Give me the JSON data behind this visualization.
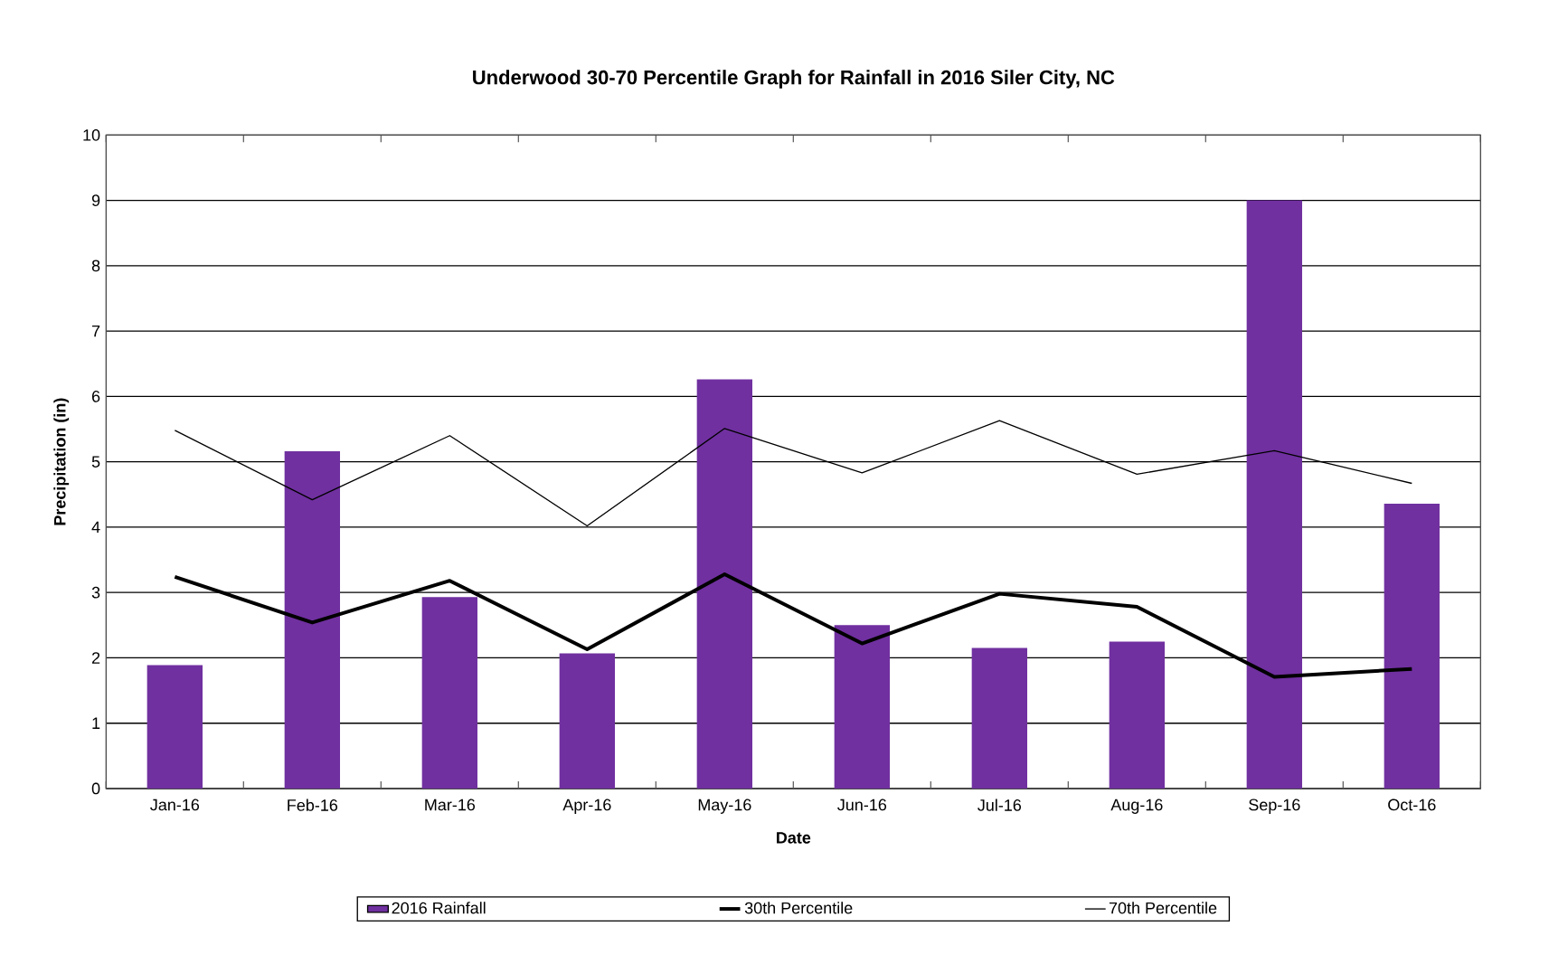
{
  "chart_data": {
    "type": "bar",
    "title": "Underwood 30-70 Percentile Graph for Rainfall in 2016 Siler City, NC",
    "xlabel": "Date",
    "ylabel": "Precipitation (in)",
    "categories": [
      "Jan-16",
      "Feb-16",
      "Mar-16",
      "Apr-16",
      "May-16",
      "Jun-16",
      "Jul-16",
      "Aug-16",
      "Sep-16",
      "Oct-16"
    ],
    "series": [
      {
        "name": "2016 Rainfall",
        "color": "#7030a0",
        "values": [
          1.89,
          5.16,
          2.93,
          2.07,
          6.26,
          2.5,
          2.15,
          2.25,
          9.0,
          4.36
        ]
      },
      {
        "name": "30th Percentile",
        "type": "line",
        "color": "#000000",
        "values": [
          3.24,
          2.54,
          3.18,
          2.13,
          3.28,
          2.22,
          2.98,
          2.78,
          1.71,
          1.83
        ]
      },
      {
        "name": "70th Percentile",
        "type": "line",
        "color": "#000000",
        "values": [
          5.48,
          4.42,
          5.4,
          4.02,
          5.51,
          4.83,
          5.63,
          4.81,
          5.17,
          4.67
        ]
      }
    ],
    "ylim": [
      0,
      10
    ],
    "yticks": [
      0,
      1,
      2,
      3,
      4,
      5,
      6,
      7,
      8,
      9,
      10
    ],
    "grid": "y",
    "legend": "bottom"
  }
}
